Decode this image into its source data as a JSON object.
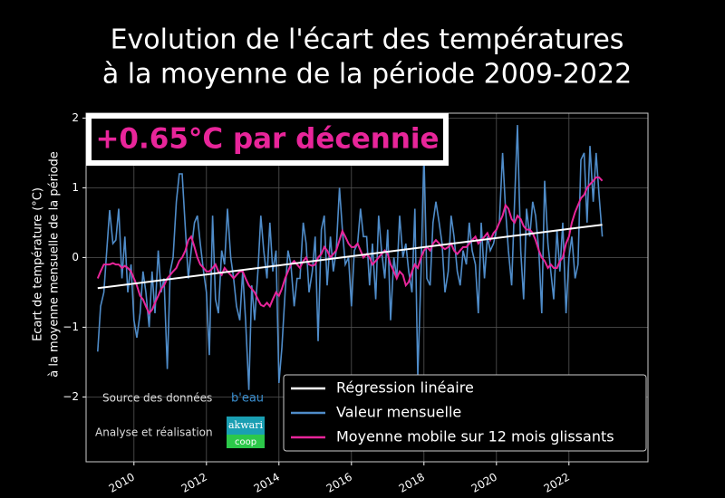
{
  "chart_data": {
    "type": "line",
    "title": [
      "Evolution de l'écart des températures",
      "à la moyenne de la période 2009-2022"
    ],
    "ylabel": [
      "Ecart de température (°C)",
      "à la moyenne mensuelle de la période"
    ],
    "annotation": "+0.65°C par décennie",
    "credits": {
      "source": "Source des données",
      "source_logo": "b'eau",
      "analysis": "Analyse et réalisation",
      "analysis_logo": [
        "akwari",
        "coop"
      ]
    },
    "xlim": [
      2008.68,
      2024.18
    ],
    "ylim": [
      -2.93,
      2.07
    ],
    "xticks": [
      2010,
      2012,
      2014,
      2016,
      2018,
      2020,
      2022
    ],
    "yticks": [
      {
        "value": -2,
        "label": "−2"
      },
      {
        "value": -1,
        "label": "−1"
      },
      0,
      1,
      2
    ],
    "grid": true,
    "legend": "lower right",
    "x": [
      2009.0,
      2009.08,
      2009.17,
      2009.25,
      2009.33,
      2009.42,
      2009.5,
      2009.58,
      2009.67,
      2009.75,
      2009.83,
      2009.92,
      2010.0,
      2010.08,
      2010.17,
      2010.25,
      2010.33,
      2010.42,
      2010.5,
      2010.58,
      2010.67,
      2010.75,
      2010.83,
      2010.92,
      2011.0,
      2011.08,
      2011.17,
      2011.25,
      2011.33,
      2011.42,
      2011.5,
      2011.58,
      2011.67,
      2011.75,
      2011.83,
      2011.92,
      2012.0,
      2012.08,
      2012.17,
      2012.25,
      2012.33,
      2012.42,
      2012.5,
      2012.58,
      2012.67,
      2012.75,
      2012.83,
      2012.92,
      2013.0,
      2013.08,
      2013.17,
      2013.25,
      2013.33,
      2013.42,
      2013.5,
      2013.58,
      2013.67,
      2013.75,
      2013.83,
      2013.92,
      2014.0,
      2014.08,
      2014.17,
      2014.25,
      2014.33,
      2014.42,
      2014.5,
      2014.58,
      2014.67,
      2014.75,
      2014.83,
      2014.92,
      2015.0,
      2015.08,
      2015.17,
      2015.25,
      2015.33,
      2015.42,
      2015.5,
      2015.58,
      2015.67,
      2015.75,
      2015.83,
      2015.92,
      2016.0,
      2016.08,
      2016.17,
      2016.25,
      2016.33,
      2016.42,
      2016.5,
      2016.58,
      2016.67,
      2016.75,
      2016.83,
      2016.92,
      2017.0,
      2017.08,
      2017.17,
      2017.25,
      2017.33,
      2017.42,
      2017.5,
      2017.58,
      2017.67,
      2017.75,
      2017.83,
      2017.92,
      2018.0,
      2018.08,
      2018.17,
      2018.25,
      2018.33,
      2018.42,
      2018.5,
      2018.58,
      2018.67,
      2018.75,
      2018.83,
      2018.92,
      2019.0,
      2019.08,
      2019.17,
      2019.25,
      2019.33,
      2019.42,
      2019.5,
      2019.58,
      2019.67,
      2019.75,
      2019.83,
      2019.92,
      2020.0,
      2020.08,
      2020.17,
      2020.25,
      2020.33,
      2020.42,
      2020.5,
      2020.58,
      2020.67,
      2020.75,
      2020.83,
      2020.92,
      2021.0,
      2021.08,
      2021.17,
      2021.25,
      2021.33,
      2021.42,
      2021.5,
      2021.58,
      2021.67,
      2021.75,
      2021.83,
      2021.92,
      2022.0,
      2022.08,
      2022.17,
      2022.25,
      2022.33,
      2022.42,
      2022.5,
      2022.58,
      2022.67,
      2022.75,
      2022.83,
      2022.92
    ],
    "series": [
      {
        "name": "Régression linéaire",
        "color": "#ffffff",
        "x": [
          2009.0,
          2022.92
        ],
        "values": [
          -0.44,
          0.47
        ]
      },
      {
        "name": "Valeur mensuelle",
        "color": "#4f8cc9",
        "values": [
          -1.35,
          -0.7,
          -0.5,
          0.1,
          0.68,
          0.2,
          0.25,
          0.7,
          -0.3,
          0.3,
          -0.5,
          -0.1,
          -0.9,
          -1.15,
          -0.8,
          -0.2,
          -0.5,
          -1.0,
          -0.2,
          -0.8,
          0.1,
          -0.5,
          -0.3,
          -1.6,
          -0.2,
          0.0,
          0.8,
          1.2,
          1.2,
          0.4,
          -0.3,
          0.1,
          0.5,
          0.6,
          0.2,
          -0.2,
          -0.5,
          -1.4,
          0.6,
          -0.6,
          -0.8,
          0.1,
          -0.1,
          0.7,
          0.0,
          -0.3,
          -0.7,
          -0.9,
          -0.2,
          -0.9,
          -1.9,
          -0.4,
          -0.9,
          -0.2,
          0.6,
          0.1,
          -0.3,
          0.5,
          -0.2,
          0.1,
          -1.8,
          -1.3,
          -0.5,
          0.1,
          -0.1,
          -0.7,
          -0.3,
          -0.3,
          0.5,
          0.2,
          -0.5,
          -0.2,
          0.3,
          -1.2,
          0.4,
          0.6,
          -0.4,
          0.3,
          -0.2,
          0.1,
          1.0,
          0.4,
          -0.1,
          0.0,
          -0.7,
          0.1,
          0.2,
          0.7,
          0.3,
          0.3,
          -0.4,
          0.2,
          -0.6,
          0.6,
          0.1,
          -0.3,
          0.4,
          -0.9,
          0.0,
          -0.3,
          0.6,
          0.0,
          0.2,
          -0.2,
          -0.5,
          0.7,
          -1.7,
          -0.2,
          1.5,
          -0.3,
          -0.4,
          0.5,
          0.8,
          0.5,
          0.2,
          -0.5,
          -0.2,
          0.6,
          0.3,
          -0.2,
          -0.4,
          0.1,
          -0.1,
          0.5,
          0.1,
          -0.1,
          -0.8,
          0.5,
          -0.3,
          0.3,
          0.1,
          0.2,
          0.4,
          0.5,
          1.5,
          0.7,
          0.1,
          -0.4,
          0.8,
          1.9,
          0.1,
          -0.6,
          0.7,
          0.3,
          0.8,
          0.6,
          0.1,
          -0.8,
          1.1,
          0.2,
          -0.2,
          -0.6,
          0.4,
          -0.2,
          0.5,
          -0.8,
          0.0,
          0.3,
          -0.3,
          -0.1,
          1.4,
          1.5,
          0.5,
          1.6,
          0.8,
          1.5,
          0.9,
          0.3
        ]
      },
      {
        "name": "Moyenne mobile sur 12 mois glissants",
        "color": "#e8259a",
        "values": [
          -0.3,
          -0.2,
          -0.1,
          -0.1,
          -0.1,
          -0.08,
          -0.1,
          -0.1,
          -0.15,
          -0.12,
          -0.15,
          -0.2,
          -0.3,
          -0.4,
          -0.55,
          -0.6,
          -0.7,
          -0.8,
          -0.75,
          -0.65,
          -0.55,
          -0.45,
          -0.4,
          -0.3,
          -0.25,
          -0.2,
          -0.15,
          -0.05,
          0.0,
          0.1,
          0.25,
          0.3,
          0.15,
          0.0,
          -0.1,
          -0.15,
          -0.2,
          -0.2,
          -0.15,
          -0.1,
          -0.2,
          -0.25,
          -0.15,
          -0.2,
          -0.25,
          -0.3,
          -0.25,
          -0.2,
          -0.2,
          -0.3,
          -0.4,
          -0.45,
          -0.5,
          -0.6,
          -0.68,
          -0.7,
          -0.65,
          -0.7,
          -0.6,
          -0.5,
          -0.55,
          -0.45,
          -0.3,
          -0.2,
          -0.1,
          -0.05,
          -0.1,
          -0.15,
          -0.05,
          0.0,
          -0.1,
          -0.12,
          -0.1,
          0.0,
          0.05,
          0.15,
          0.1,
          0.0,
          0.05,
          0.1,
          0.25,
          0.38,
          0.3,
          0.2,
          0.15,
          0.15,
          0.2,
          0.1,
          0.0,
          0.05,
          0.0,
          -0.1,
          -0.05,
          0.0,
          0.05,
          0.1,
          0.05,
          -0.1,
          -0.2,
          -0.3,
          -0.2,
          -0.25,
          -0.4,
          -0.35,
          -0.2,
          -0.1,
          -0.15,
          0.0,
          0.1,
          0.15,
          0.1,
          0.2,
          0.25,
          0.2,
          0.15,
          0.12,
          0.15,
          0.2,
          0.1,
          0.05,
          0.1,
          0.15,
          0.15,
          0.2,
          0.25,
          0.3,
          0.2,
          0.25,
          0.3,
          0.35,
          0.25,
          0.35,
          0.4,
          0.5,
          0.6,
          0.75,
          0.7,
          0.55,
          0.5,
          0.6,
          0.55,
          0.45,
          0.4,
          0.4,
          0.35,
          0.25,
          0.1,
          0.0,
          -0.05,
          -0.15,
          -0.1,
          -0.15,
          -0.15,
          -0.05,
          0.0,
          0.2,
          0.3,
          0.5,
          0.65,
          0.75,
          0.85,
          0.9,
          1.0,
          1.05,
          1.1,
          1.15,
          1.15,
          1.1
        ]
      }
    ]
  }
}
